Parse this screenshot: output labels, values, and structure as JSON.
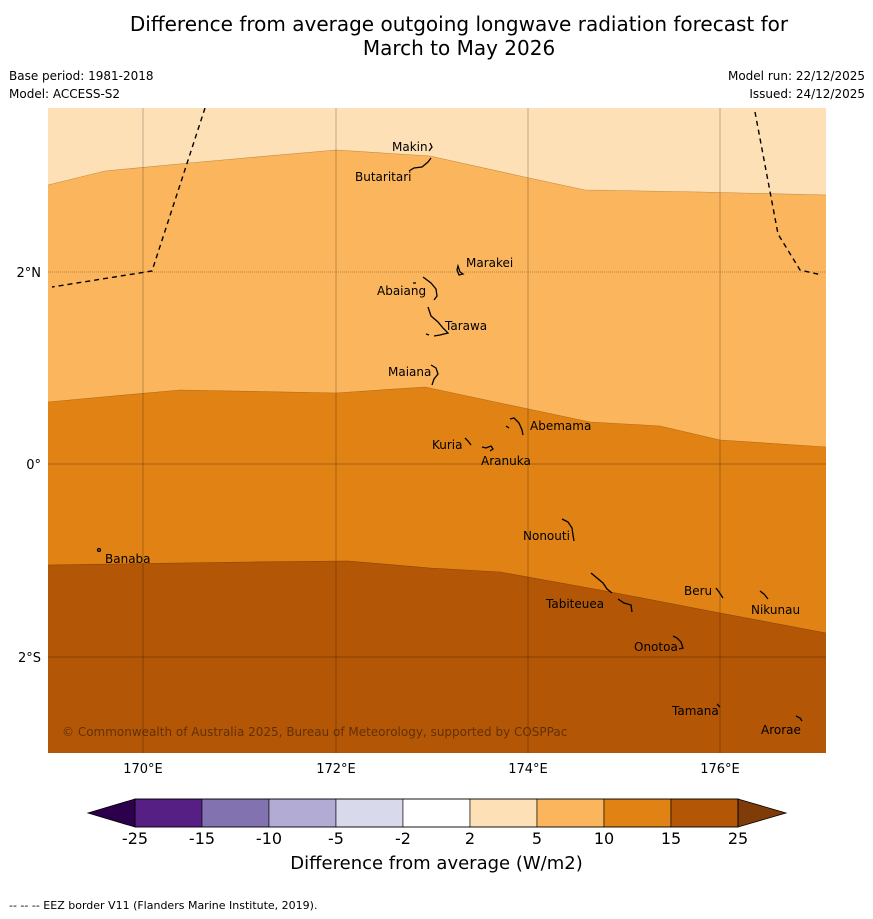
{
  "title": {
    "line1": "Difference from average outgoing longwave radiation forecast for",
    "line2": "March to May 2026"
  },
  "meta": {
    "base_period": "Base period: 1981-2018",
    "model": "Model: ACCESS-S2",
    "model_run": "Model run: 22/12/2025",
    "issued": "Issued: 24/12/2025"
  },
  "map": {
    "lat_labels": [
      "2°N",
      "0°",
      "2°S"
    ],
    "lon_labels": [
      "170°E",
      "172°E",
      "174°E",
      "176°E"
    ],
    "places": [
      "Makin",
      "Butaritari",
      "Marakei",
      "Abaiang",
      "Tarawa",
      "Maiana",
      "Abemama",
      "Kuria",
      "Aranuka",
      "Banaba",
      "Nonouti",
      "Beru",
      "Nikunau",
      "Tabiteuea",
      "Onotoa",
      "Tamana",
      "Arorae"
    ],
    "copyright": "© Commonwealth of Australia 2025, Bureau of Meteorology, supported by COSPPac"
  },
  "colorbar": {
    "title": "Difference from average (W/m2)",
    "ticks": [
      "-25",
      "-15",
      "-10",
      "-5",
      "-2",
      "2",
      "5",
      "10",
      "15",
      "25"
    ],
    "colors": [
      "#561f84",
      "#8272b0",
      "#b2abd3",
      "#d8d9eb",
      "#ffffff",
      "#fee0b6",
      "#fab55d",
      "#e08214",
      "#b35706"
    ],
    "extend_low_color": "#2d004b",
    "extend_high_color": "#7f3b08"
  },
  "footnote": "--  --  -- EEZ border V11 (Flanders Marine Institute, 2019)."
}
